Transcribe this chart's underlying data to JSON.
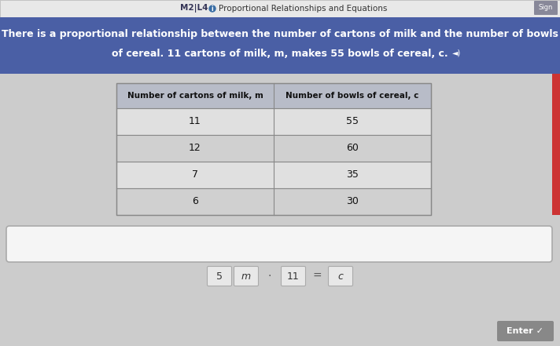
{
  "title_bar_color": "#4a5fa5",
  "title_text_line1": "There is a proportional relationship between the number of cartons of milk and the number of bowls",
  "title_text_line2": "of cereal. 11 cartons of milk, m, makes 55 bowls of cereal, c.",
  "header_row": [
    "Number of cartons of milk, m",
    "Number of bowls of cereal, c"
  ],
  "table_data": [
    [
      "11",
      "55"
    ],
    [
      "12",
      "60"
    ],
    [
      "7",
      "35"
    ],
    [
      "6",
      "30"
    ]
  ],
  "bg_color": "#cccccc",
  "nav_text": "M2|L4",
  "nav_subtitle": "Proportional Relationships and Equations",
  "input_box_color": "#f5f5f5",
  "input_box_border": "#aaaaaa",
  "bottom_tokens": [
    "5",
    "m",
    "·",
    "11",
    "=",
    "c"
  ],
  "enter_button_color": "#888888",
  "enter_button_text": "Enter ✓",
  "top_bar_color": "#e8e8e8",
  "sign_button_color": "#888899",
  "table_header_bg": "#b8bcc8",
  "table_row_bg1": "#e0e0e0",
  "table_row_bg2": "#d0d0d0",
  "table_border": "#888888",
  "scrollbar_color": "#cc3333"
}
